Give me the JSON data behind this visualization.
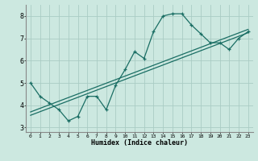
{
  "title": "",
  "xlabel": "Humidex (Indice chaleur)",
  "bg_color": "#cce8e0",
  "grid_color": "#aaccc4",
  "line_color": "#1a6e64",
  "x_data": [
    0,
    1,
    2,
    3,
    4,
    5,
    6,
    7,
    8,
    9,
    10,
    11,
    12,
    13,
    14,
    15,
    16,
    17,
    18,
    19,
    20,
    21,
    22,
    23
  ],
  "y_main": [
    5.0,
    4.4,
    4.1,
    3.8,
    3.3,
    3.5,
    4.4,
    4.4,
    3.8,
    4.9,
    5.6,
    6.4,
    6.1,
    7.3,
    8.0,
    8.1,
    8.1,
    7.6,
    7.2,
    6.8,
    6.8,
    6.5,
    7.0,
    7.3
  ],
  "reg_line1": [
    3.55,
    7.25
  ],
  "reg_line2": [
    3.7,
    7.4
  ],
  "ylim": [
    2.8,
    8.5
  ],
  "xlim": [
    -0.5,
    23.5
  ],
  "yticks": [
    3,
    4,
    5,
    6,
    7,
    8
  ],
  "xticks": [
    0,
    1,
    2,
    3,
    4,
    5,
    6,
    7,
    8,
    9,
    10,
    11,
    12,
    13,
    14,
    15,
    16,
    17,
    18,
    19,
    20,
    21,
    22,
    23
  ]
}
